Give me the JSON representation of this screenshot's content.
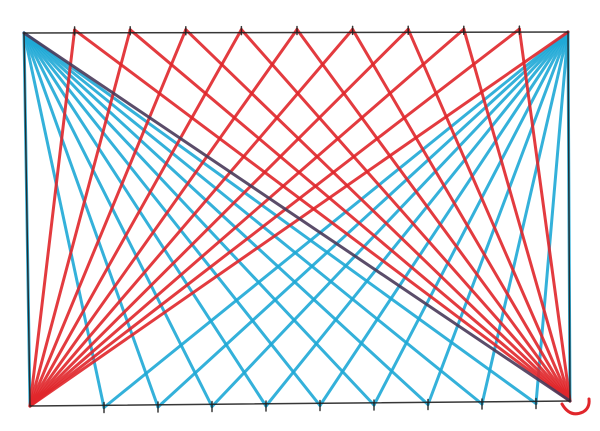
{
  "drawing": {
    "colors": {
      "red": "#e0262b",
      "blue": "#1fa9d6",
      "frame": "#222222"
    },
    "top_tick_count": 9,
    "bottom_tick_count": 9,
    "icons": [
      "smiley-mark"
    ]
  }
}
